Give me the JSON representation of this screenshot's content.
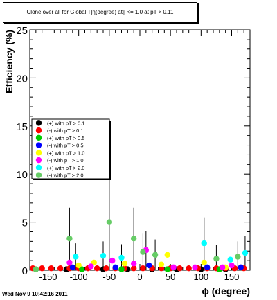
{
  "chart_data": {
    "type": "scatter",
    "title": "Clone  over all for Global T|η(degree) at|| <= 1.0 at pT > 0.11",
    "xlabel": "ϕ (degree)",
    "ylabel": "Efficiency (%)",
    "xlim": [
      -180,
      180
    ],
    "ylim": [
      0,
      25
    ],
    "x_ticks": [
      -150,
      -100,
      -50,
      0,
      50,
      100,
      150
    ],
    "y_ticks": [
      0,
      5,
      10,
      15,
      20,
      25
    ],
    "legend_placement": "center-left",
    "grid": false,
    "series": [
      {
        "name": "(+) with pT > 0.1",
        "color": "#000000",
        "points": [
          [
            -120,
            0.1
          ],
          [
            -60,
            0.1
          ],
          [
            -20,
            0.1
          ],
          [
            20,
            0.1
          ],
          [
            60,
            0.1
          ],
          [
            100,
            0.1
          ],
          [
            140,
            0.1
          ]
        ]
      },
      {
        "name": "(-) with pT > 0.1",
        "color": "#ff0000",
        "points": [
          [
            -175,
            0.2
          ],
          [
            -160,
            0.2
          ],
          [
            -145,
            0.2
          ],
          [
            -130,
            0.2
          ],
          [
            -115,
            0.2
          ],
          [
            -100,
            0.2
          ],
          [
            -85,
            0.2
          ],
          [
            -70,
            0.2
          ],
          [
            -55,
            0.2
          ],
          [
            -40,
            0.2
          ],
          [
            -25,
            0.2
          ],
          [
            -10,
            0.2
          ],
          [
            5,
            0.2
          ],
          [
            20,
            0.2
          ],
          [
            35,
            0.2
          ],
          [
            50,
            0.2
          ],
          [
            65,
            0.2
          ],
          [
            80,
            0.2
          ],
          [
            95,
            0.2
          ],
          [
            110,
            0.2
          ],
          [
            125,
            0.2
          ],
          [
            140,
            0.2
          ],
          [
            155,
            0.2
          ],
          [
            170,
            0.2
          ]
        ]
      },
      {
        "name": "(+) with pT > 0.5",
        "color": "#00cc00",
        "points": [
          [
            -170,
            0.1
          ],
          [
            -95,
            0.1
          ],
          [
            -30,
            0.1
          ],
          [
            45,
            0.1
          ],
          [
            130,
            0.1
          ]
        ]
      },
      {
        "name": "(-) with pT > 0.5",
        "color": "#0000ff",
        "points": [
          [
            -110,
            0.3
          ],
          [
            -40,
            0.3
          ],
          [
            15,
            0.5
          ],
          [
            110,
            0.3
          ],
          [
            165,
            0.3
          ]
        ]
      },
      {
        "name": "(+) with pT > 1.0",
        "color": "#ffff00",
        "points": [
          [
            -100,
            0.5
          ],
          [
            -75,
            0.8
          ],
          [
            -25,
            0.7
          ],
          [
            35,
            0.6
          ],
          [
            45,
            1.6
          ],
          [
            105,
            0.8
          ],
          [
            140,
            0.3
          ]
        ]
      },
      {
        "name": "(-) with pT > 1.0",
        "color": "#ff00ff",
        "points": [
          [
            -115,
            0.8
          ],
          [
            -80,
            0.4
          ],
          [
            -45,
            1.0
          ],
          [
            -10,
            0.7
          ],
          [
            10,
            2.1
          ],
          [
            55,
            0.3
          ],
          [
            90,
            0.3
          ],
          [
            135,
            0.3
          ],
          [
            150,
            0.5
          ]
        ]
      },
      {
        "name": "(+) with pT > 2.0",
        "color": "#00ffff",
        "points": [
          [
            -105,
            1.4
          ],
          [
            -60,
            1.5
          ],
          [
            -30,
            1.3
          ],
          [
            105,
            2.8
          ],
          [
            148,
            1.1
          ],
          [
            172,
            1.8
          ]
        ]
      },
      {
        "name": "(-) with pT > 2.0",
        "color": "#66cc66",
        "points": [
          [
            -170,
            0.1
          ],
          [
            -115,
            3.3
          ],
          [
            -50,
            5.0
          ],
          [
            -10,
            3.3
          ],
          [
            5,
            1.9
          ],
          [
            25,
            1.6
          ],
          [
            125,
            1.2
          ],
          [
            160,
            1.4
          ]
        ]
      }
    ],
    "error_bars": [
      {
        "x": -115,
        "y": 3.3,
        "high": 6.5
      },
      {
        "x": -105,
        "y": 1.4,
        "high": 2.8
      },
      {
        "x": -60,
        "y": 1.5,
        "high": 3.0
      },
      {
        "x": -50,
        "y": 5.0,
        "high": 9.8
      },
      {
        "x": -30,
        "y": 1.3,
        "high": 2.7
      },
      {
        "x": -10,
        "y": 3.3,
        "high": 6.5
      },
      {
        "x": 5,
        "y": 1.9,
        "high": 3.8
      },
      {
        "x": 10,
        "y": 2.1,
        "high": 4.1
      },
      {
        "x": 25,
        "y": 1.6,
        "high": 3.2
      },
      {
        "x": 105,
        "y": 2.8,
        "high": 5.5
      },
      {
        "x": 125,
        "y": 1.2,
        "high": 2.6
      },
      {
        "x": 160,
        "y": 1.4,
        "high": 3.0
      },
      {
        "x": 172,
        "y": 1.8,
        "high": 3.6
      }
    ]
  },
  "footer": {
    "timestamp": "Wed Nov  9 10:42:16 2011"
  }
}
